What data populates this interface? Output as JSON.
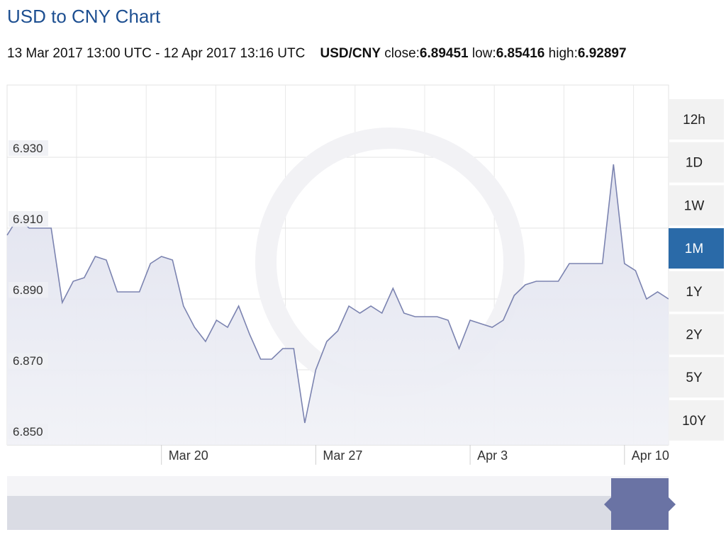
{
  "header": {
    "title": "USD to CNY Chart",
    "range": "13 Mar 2017 13:00 UTC - 12 Apr 2017 13:16 UTC",
    "pair": "USD/CNY",
    "close_label": "close:",
    "close": 6.89451,
    "low_label": "low:",
    "low": 6.85416,
    "high_label": "high:",
    "high": 6.92897
  },
  "range_buttons": {
    "options": [
      "12h",
      "1D",
      "1W",
      "1M",
      "1Y",
      "2Y",
      "5Y",
      "10Y"
    ],
    "selected": 3
  },
  "chart_data": {
    "type": "area",
    "categories": [
      null,
      null,
      null,
      null,
      null,
      null,
      null,
      null,
      null,
      null,
      null,
      null,
      null,
      null,
      "Mar 20",
      null,
      null,
      null,
      null,
      null,
      null,
      null,
      null,
      null,
      null,
      null,
      null,
      null,
      "Mar 27",
      null,
      null,
      null,
      null,
      null,
      null,
      null,
      null,
      null,
      null,
      null,
      null,
      null,
      "Apr 3",
      null,
      null,
      null,
      null,
      null,
      null,
      null,
      null,
      null,
      null,
      null,
      null,
      null,
      "Apr 10",
      null,
      null,
      null,
      null
    ],
    "values": [
      6.908,
      6.913,
      6.91,
      6.91,
      6.91,
      6.889,
      6.895,
      6.896,
      6.902,
      6.901,
      6.892,
      6.892,
      6.892,
      6.9,
      6.902,
      6.901,
      6.888,
      6.882,
      6.878,
      6.884,
      6.882,
      6.888,
      6.88,
      6.873,
      6.873,
      6.876,
      6.876,
      6.855,
      6.87,
      6.878,
      6.881,
      6.888,
      6.886,
      6.888,
      6.886,
      6.893,
      6.886,
      6.885,
      6.885,
      6.885,
      6.884,
      6.876,
      6.884,
      6.883,
      6.882,
      6.884,
      6.891,
      6.894,
      6.895,
      6.895,
      6.895,
      6.9,
      6.9,
      6.9,
      6.9,
      6.928,
      6.9,
      6.898,
      6.89,
      6.892,
      6.89
    ],
    "color": "#7b83b0",
    "ylim": [
      6.8488,
      6.9504
    ],
    "yticks": [
      {
        "value": 6.85,
        "label": "6.850"
      },
      {
        "value": 6.87,
        "label": "6.870"
      },
      {
        "value": 6.89,
        "label": "6.890"
      },
      {
        "value": 6.91,
        "label": "6.910"
      },
      {
        "value": 6.93,
        "label": "6.930"
      }
    ],
    "grid": true
  }
}
